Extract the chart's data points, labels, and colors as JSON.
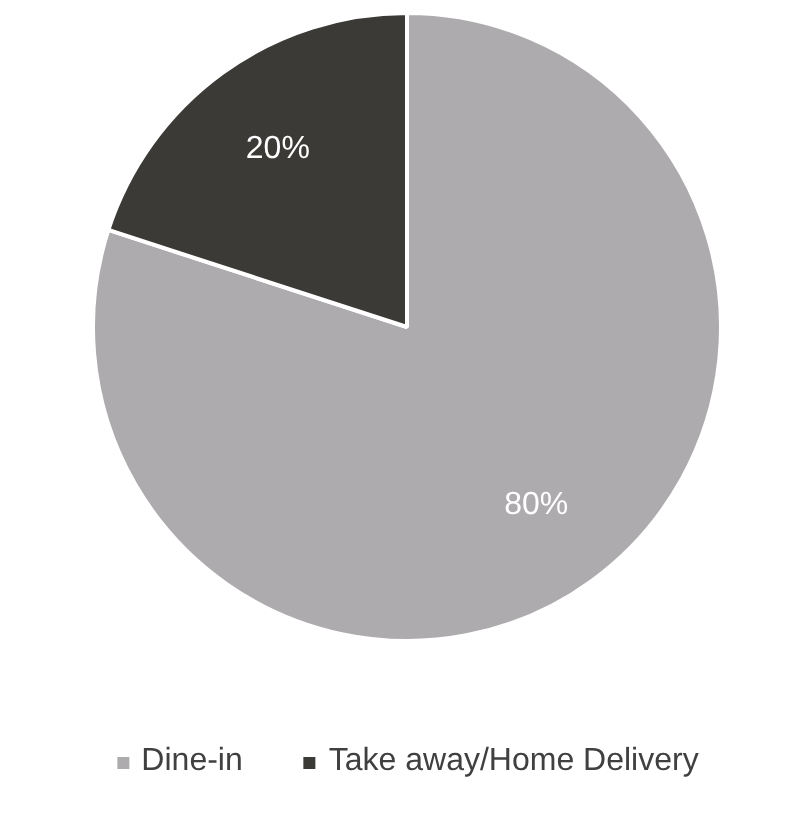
{
  "chart_data": {
    "type": "pie",
    "categories": [
      "Dine-in",
      "Take away/Home Delivery"
    ],
    "values": [
      80,
      20
    ],
    "colors": [
      "#aeabae",
      "#3b3a37"
    ],
    "value_labels": [
      "80%",
      "20%"
    ],
    "legend": "bottom"
  }
}
